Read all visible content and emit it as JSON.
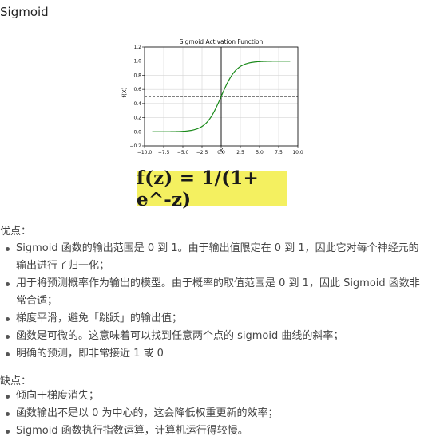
{
  "heading": "Sigmoid",
  "chart_data": {
    "type": "line",
    "title": "Sigmoid Activation Function",
    "xlabel": "X",
    "ylabel": "f(X)",
    "xlim": [
      -10.0,
      10.0
    ],
    "ylim": [
      -0.2,
      1.2
    ],
    "x_ticks": [
      -10.0,
      -7.5,
      -5.0,
      -2.5,
      0.0,
      2.5,
      5.0,
      7.5,
      10.0
    ],
    "x_tick_labels": [
      "−10.0",
      "−7.5",
      "−5.0",
      "−2.5",
      "0.0",
      "2.5",
      "5.0",
      "7.5",
      "10.0"
    ],
    "y_ticks": [
      -0.2,
      0.0,
      0.2,
      0.4,
      0.6,
      0.8,
      1.0,
      1.2
    ],
    "y_tick_labels": [
      "−0.2",
      "0.0",
      "0.2",
      "0.4",
      "0.6",
      "0.8",
      "1.0",
      "1.2"
    ],
    "grid": true,
    "series": [
      {
        "function": "sigmoid",
        "x_range": [
          -9,
          9
        ],
        "color": "#1a8a1a",
        "style": "solid"
      }
    ],
    "reference_lines": [
      {
        "orientation": "horizontal",
        "value": 0.5,
        "style": "dashed",
        "color": "#000000"
      },
      {
        "orientation": "vertical",
        "value": 0,
        "style": "solid",
        "color": "#000000"
      }
    ]
  },
  "formula": "f(z) = 1/(1+ e^-z)",
  "formula_highlight": "#f4f060",
  "pros": {
    "label": "优点：",
    "items": [
      "Sigmoid 函数的输出范围是 0 到 1。由于输出值限定在 0 到 1，因此它对每个神经元的输出进行了归一化；",
      "用于将预测概率作为输出的模型。由于概率的取值范围是 0 到 1，因此 Sigmoid 函数非常合适；",
      "梯度平滑，避免「跳跃」的输出值；",
      "函数是可微的。这意味着可以找到任意两个点的 sigmoid 曲线的斜率；",
      "明确的预测，即非常接近 1 或 0"
    ]
  },
  "cons": {
    "label": "缺点：",
    "items": [
      "倾向于梯度消失；",
      "函数输出不是以 0 为中心的，这会降低权重更新的效率；",
      "Sigmoid 函数执行指数运算，计算机运行得较慢。"
    ]
  }
}
